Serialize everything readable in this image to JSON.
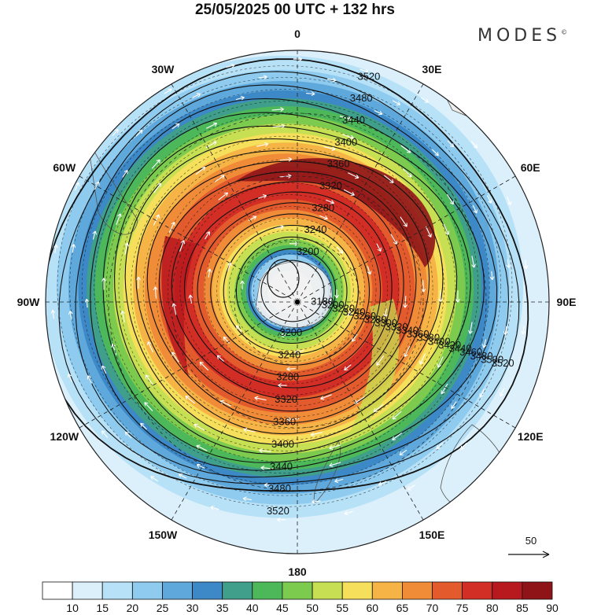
{
  "title": "25/05/2025  00 UTC  + 132 hrs",
  "brand": "MODES",
  "brand_mark": "©",
  "map": {
    "projection": "polar-stereographic-south",
    "longitude_labels": [
      {
        "id": "0",
        "text": "0",
        "lon": 0
      },
      {
        "id": "30e",
        "text": "30E",
        "lon": 30
      },
      {
        "id": "60e",
        "text": "60E",
        "lon": 60
      },
      {
        "id": "90e",
        "text": "90E",
        "lon": 90
      },
      {
        "id": "120e",
        "text": "120E",
        "lon": 120
      },
      {
        "id": "150e",
        "text": "150E",
        "lon": 150
      },
      {
        "id": "180",
        "text": "180",
        "lon": 180
      },
      {
        "id": "150w",
        "text": "150W",
        "lon": -150
      },
      {
        "id": "120w",
        "text": "120W",
        "lon": -120
      },
      {
        "id": "90w",
        "text": "90W",
        "lon": -90
      },
      {
        "id": "60w",
        "text": "60W",
        "lon": -60
      },
      {
        "id": "30w",
        "text": "30W",
        "lon": -30
      }
    ],
    "contour_labels": [
      "3520",
      "3500",
      "3480",
      "3460",
      "3440",
      "3420",
      "3400",
      "3380",
      "3360",
      "3340",
      "3320",
      "3300",
      "3280",
      "3260",
      "3240",
      "3220",
      "3200",
      "3180"
    ],
    "vector_reference": "50",
    "wind_colorbar": {
      "ticks": [
        "10",
        "15",
        "20",
        "25",
        "30",
        "35",
        "40",
        "45",
        "50",
        "55",
        "60",
        "65",
        "70",
        "75",
        "80",
        "85",
        "90"
      ],
      "colors": [
        "#ffffff",
        "#dcf0fb",
        "#b7e1f7",
        "#8ecbef",
        "#5ea8db",
        "#3d88c6",
        "#3f9f8a",
        "#4cb85a",
        "#7ccb4f",
        "#c7df52",
        "#f6df5a",
        "#f7b446",
        "#f08b38",
        "#e35a2d",
        "#d32e26",
        "#b8191f",
        "#8e1418"
      ]
    }
  }
}
